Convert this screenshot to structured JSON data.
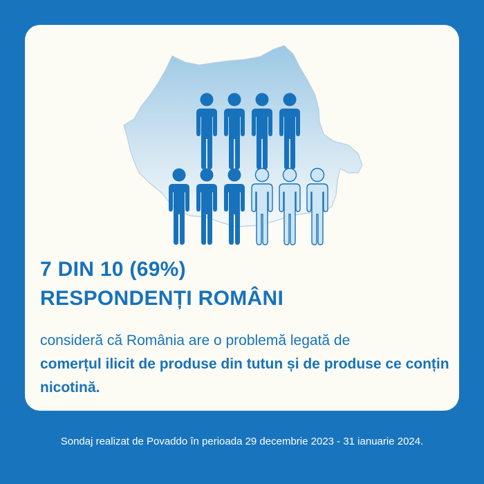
{
  "headline": {
    "line1": "7 DIN 10 (69%)",
    "line2": "RESPONDENȚI ROMÂNI"
  },
  "statement": {
    "normal": "consideră că România are o problemă legată de",
    "bold": "comerțul ilicit de produse din tutun și de produse ce conțin nicotină."
  },
  "figures": {
    "total": 10,
    "highlighted": 7,
    "highlight_color": "#1772bb",
    "muted_color": "#cde5f4"
  },
  "footer": "Sondaj realizat de Povaddo în perioada 29 decembrie 2023 - 31 ianuarie 2024.",
  "colors": {
    "background": "#1874bd",
    "card": "#fcfcf4",
    "text": "#1772bb"
  }
}
